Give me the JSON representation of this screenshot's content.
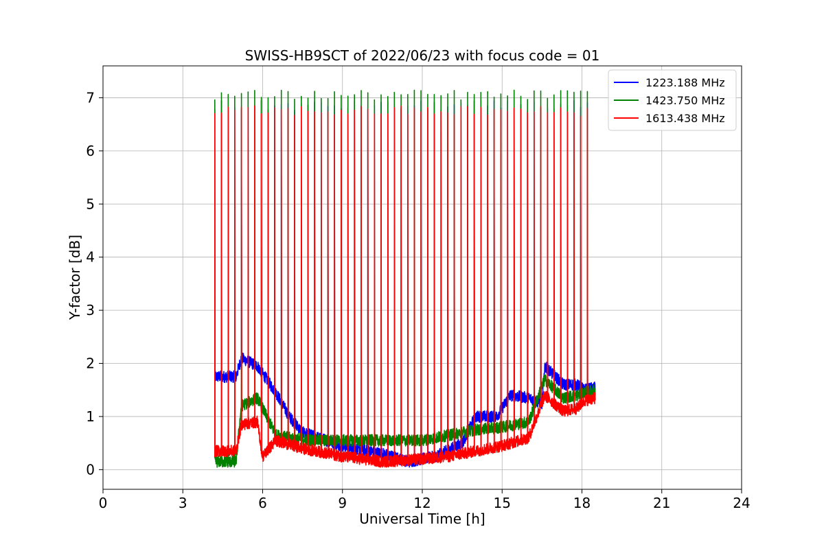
{
  "chart_data": {
    "type": "line",
    "title": "SWISS-HB9SCT of 2022/06/23 with focus code = 01",
    "xlabel": "Universal Time [h]",
    "ylabel": "Y-factor [dB]",
    "xlim": [
      0,
      24
    ],
    "ylim": [
      -0.37,
      7.6
    ],
    "xticks": [
      0,
      3,
      6,
      9,
      12,
      15,
      18,
      21,
      24
    ],
    "yticks": [
      0,
      1,
      2,
      3,
      4,
      5,
      6,
      7
    ],
    "grid": true,
    "legend_position": "top-right",
    "data_range_hours": [
      4.2,
      18.5
    ],
    "spike_interval_hours": 0.25,
    "series": [
      {
        "name": "1223.188 MHz",
        "color": "#0000ff",
        "spike_peak": 6.85,
        "baseline": [
          [
            4.2,
            1.75
          ],
          [
            5.0,
            1.75
          ],
          [
            5.2,
            2.1
          ],
          [
            5.8,
            1.95
          ],
          [
            6.5,
            1.45
          ],
          [
            7.0,
            1.0
          ],
          [
            7.5,
            0.7
          ],
          [
            9.0,
            0.45
          ],
          [
            10.5,
            0.3
          ],
          [
            11.5,
            0.15
          ],
          [
            12.5,
            0.25
          ],
          [
            13.5,
            0.5
          ],
          [
            14.0,
            1.0
          ],
          [
            14.8,
            1.0
          ],
          [
            15.3,
            1.4
          ],
          [
            16.0,
            1.35
          ],
          [
            16.5,
            1.25
          ],
          [
            16.6,
            1.95
          ],
          [
            17.3,
            1.6
          ],
          [
            17.8,
            1.6
          ],
          [
            18.1,
            1.5
          ],
          [
            18.5,
            1.55
          ]
        ]
      },
      {
        "name": "1423.750 MHz",
        "color": "#008000",
        "spike_peak": 7.05,
        "baseline": [
          [
            4.2,
            0.15
          ],
          [
            5.0,
            0.15
          ],
          [
            5.2,
            1.2
          ],
          [
            5.8,
            1.35
          ],
          [
            6.5,
            0.65
          ],
          [
            7.0,
            0.6
          ],
          [
            8.0,
            0.55
          ],
          [
            9.0,
            0.55
          ],
          [
            10.5,
            0.55
          ],
          [
            12.0,
            0.55
          ],
          [
            13.0,
            0.65
          ],
          [
            14.0,
            0.75
          ],
          [
            15.0,
            0.8
          ],
          [
            16.0,
            0.9
          ],
          [
            16.6,
            1.7
          ],
          [
            17.3,
            1.35
          ],
          [
            17.8,
            1.4
          ],
          [
            18.1,
            1.45
          ],
          [
            18.5,
            1.5
          ]
        ]
      },
      {
        "name": "1613.438 MHz",
        "color": "#ff0000",
        "spike_peak": 6.75,
        "baseline": [
          [
            4.2,
            0.35
          ],
          [
            5.0,
            0.35
          ],
          [
            5.2,
            0.85
          ],
          [
            5.8,
            0.9
          ],
          [
            6.0,
            0.25
          ],
          [
            6.5,
            0.55
          ],
          [
            7.5,
            0.4
          ],
          [
            9.0,
            0.25
          ],
          [
            10.5,
            0.15
          ],
          [
            12.0,
            0.2
          ],
          [
            13.0,
            0.25
          ],
          [
            14.0,
            0.35
          ],
          [
            15.0,
            0.45
          ],
          [
            16.0,
            0.6
          ],
          [
            16.6,
            1.4
          ],
          [
            17.3,
            1.1
          ],
          [
            17.8,
            1.15
          ],
          [
            18.1,
            1.3
          ],
          [
            18.5,
            1.35
          ]
        ]
      }
    ]
  }
}
